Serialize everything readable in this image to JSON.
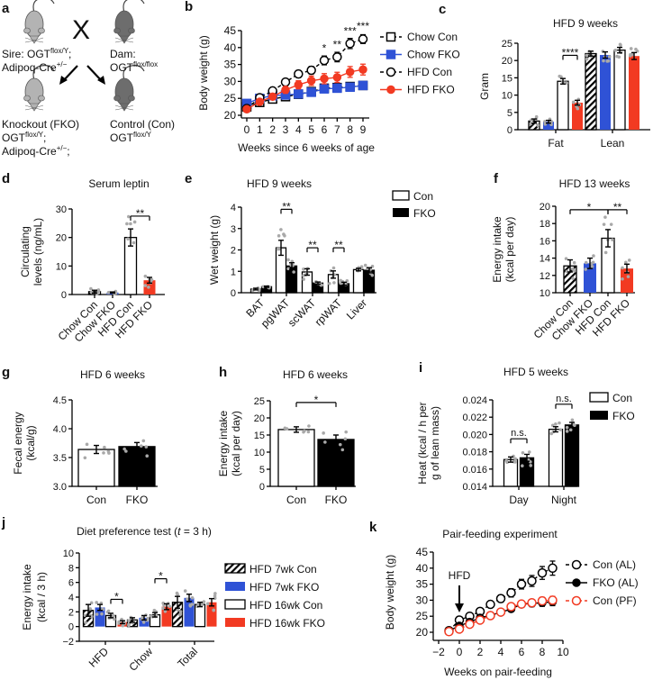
{
  "colors": {
    "black": "#000000",
    "blue": "#2f52d6",
    "red": "#f23a22",
    "white": "#ffffff",
    "dot": "#a9a9a9",
    "mouse_light": "#b3b3b3",
    "mouse_dark": "#6d6d6d"
  },
  "panel_a": {
    "label": "a",
    "cross_symbol": "X",
    "sire": [
      [
        {
          "t": "Sire: OGT"
        },
        {
          "sup": "flox/Y"
        },
        {
          "t": ";"
        }
      ],
      [
        {
          "t": "Adipoq-Cre"
        },
        {
          "sup": "+/−"
        }
      ]
    ],
    "dam": [
      [
        {
          "t": "Dam:"
        }
      ],
      [
        {
          "t": "OGT"
        },
        {
          "sup": "flox/flox"
        }
      ]
    ],
    "knockout": [
      [
        {
          "t": "Knockout (FKO)"
        }
      ],
      [
        {
          "t": "OGT"
        },
        {
          "sup": "flox/Y"
        },
        {
          "t": ";"
        }
      ],
      [
        {
          "t": "Adipoq-Cre"
        },
        {
          "sup": "+/−"
        },
        {
          "t": ";"
        }
      ]
    ],
    "control": [
      [
        {
          "t": "Control (Con)"
        }
      ],
      [
        {
          "t": "OGT"
        },
        {
          "sup": "flox/Y"
        }
      ]
    ]
  },
  "chart_data": [
    {
      "id": "b",
      "panel_label": "b",
      "type": "line",
      "title": "",
      "xlabel": "Weeks since 6 weeks of age",
      "ylabel": [
        "Body weight (g)"
      ],
      "xlim": [
        0,
        9
      ],
      "ylim": [
        20,
        45
      ],
      "xticks": [
        0,
        1,
        2,
        3,
        4,
        5,
        6,
        7,
        8,
        9
      ],
      "yticks": [
        "20",
        "25",
        "30",
        "35",
        "40",
        "45"
      ],
      "series": [
        {
          "name": "Chow Con",
          "marker": "square",
          "fill": "open",
          "color": "black",
          "dashed": true,
          "x": [
            0,
            1,
            2,
            3,
            4,
            5,
            6,
            7,
            8,
            9
          ],
          "y": [
            22.5,
            23.8,
            24.8,
            25.5,
            26.2,
            27,
            28,
            28.2,
            28.5,
            28.8
          ],
          "err": [
            0.5,
            0.5,
            0.5,
            0.5,
            0.6,
            0.6,
            0.7,
            0.7,
            0.8,
            0.8
          ]
        },
        {
          "name": "Chow FKO",
          "marker": "square",
          "fill": "filled",
          "color": "blue",
          "dashed": false,
          "x": [
            0,
            1,
            2,
            3,
            4,
            5,
            6,
            7,
            8,
            9
          ],
          "y": [
            23.5,
            25,
            25.8,
            26,
            26.3,
            26.8,
            27.8,
            28,
            28.3,
            28.8
          ],
          "err": [
            0.5,
            0.5,
            0.5,
            0.5,
            0.5,
            0.6,
            0.6,
            0.6,
            0.7,
            0.7
          ]
        },
        {
          "name": "HFD Con",
          "marker": "circle",
          "fill": "open",
          "color": "black",
          "dashed": true,
          "x": [
            0,
            1,
            2,
            3,
            4,
            5,
            6,
            7,
            8,
            9
          ],
          "y": [
            22,
            25.2,
            27.2,
            29.8,
            32.2,
            33.3,
            36.2,
            37.2,
            41.2,
            42.5
          ],
          "err": [
            0.5,
            0.6,
            0.7,
            0.8,
            1.0,
            1.1,
            1.3,
            1.4,
            1.5,
            1.3
          ]
        },
        {
          "name": "HFD FKO",
          "marker": "circle",
          "fill": "filled",
          "color": "red",
          "dashed": false,
          "x": [
            0,
            1,
            2,
            3,
            4,
            5,
            6,
            7,
            8,
            9
          ],
          "y": [
            21.8,
            24,
            25.5,
            27.5,
            29,
            30.2,
            30.8,
            31.2,
            32.8,
            33.5
          ],
          "err": [
            0.5,
            0.6,
            0.8,
            1.0,
            1.2,
            1.4,
            1.5,
            1.5,
            1.6,
            1.6
          ]
        }
      ],
      "annotations": [
        {
          "x": 6,
          "y": 38.8,
          "text": "*"
        },
        {
          "x": 7,
          "y": 39.8,
          "text": "**"
        },
        {
          "x": 8,
          "y": 43.8,
          "text": "***"
        },
        {
          "x": 9,
          "y": 45.2,
          "text": "***"
        }
      ],
      "legend": "right"
    },
    {
      "id": "c",
      "panel_label": "c",
      "type": "bar",
      "title": "HFD 9 weeks",
      "ylabel": [
        "Gram"
      ],
      "ylim": [
        0,
        25
      ],
      "yticks": [
        "0",
        "5",
        "10",
        "15",
        "20",
        "25"
      ],
      "categories": [
        "Fat",
        "Lean"
      ],
      "series": [
        {
          "name": "Chow Con",
          "style": "hatch",
          "values": [
            2.5,
            22
          ],
          "errors": [
            0.6,
            0.7
          ]
        },
        {
          "name": "Chow FKO",
          "style": "blue",
          "values": [
            2.3,
            21.6
          ],
          "errors": [
            0.4,
            0.9
          ]
        },
        {
          "name": "HFD Con",
          "style": "white",
          "values": [
            14,
            23
          ],
          "errors": [
            0.8,
            0.8
          ]
        },
        {
          "name": "HFD FKO",
          "style": "red",
          "values": [
            7.8,
            21.3
          ],
          "errors": [
            0.7,
            1.0
          ]
        }
      ],
      "brackets": [
        {
          "a": 2,
          "b": 3,
          "y": 21.5,
          "text": "****"
        }
      ]
    },
    {
      "id": "d",
      "panel_label": "d",
      "type": "bar",
      "title": "Serum leptin",
      "ylabel": [
        "Circulating",
        "levels (ng/mL)"
      ],
      "ylim": [
        0,
        30
      ],
      "yticks": [
        "0",
        "10",
        "20",
        "30"
      ],
      "categories": [
        "Chow Con",
        "Chow FKO",
        "HFD Con",
        "HFD FKO"
      ],
      "values": [
        1,
        0.7,
        20,
        5
      ],
      "errors": [
        0.5,
        0.2,
        3,
        1
      ],
      "styles": [
        "hatch",
        "blue",
        "white",
        "red"
      ],
      "brackets": [
        {
          "a": 2,
          "b": 3,
          "y": 27.5,
          "text": "**"
        }
      ]
    },
    {
      "id": "e",
      "panel_label": "e",
      "type": "bar",
      "title": "HFD 9 weeks",
      "ylabel": [
        "Wet weight (g)"
      ],
      "ylim": [
        0,
        4
      ],
      "yticks": [
        "0",
        "1",
        "2",
        "3",
        "4"
      ],
      "categories": [
        "BAT",
        "pgWAT",
        "scWAT",
        "rpWAT",
        "Liver"
      ],
      "series": [
        {
          "name": "Con",
          "style": "white",
          "values": [
            0.17,
            2.1,
            0.97,
            0.85,
            1.08
          ],
          "errors": [
            0.04,
            0.35,
            0.15,
            0.17,
            0.06
          ]
        },
        {
          "name": "FKO",
          "style": "black",
          "values": [
            0.28,
            1.25,
            0.45,
            0.42,
            1.05
          ],
          "errors": [
            0.03,
            0.15,
            0.05,
            0.07,
            0.12
          ]
        }
      ],
      "brackets": [
        {
          "a": 2,
          "b": 3,
          "y": 3.9,
          "text": "**"
        },
        {
          "a": 4,
          "b": 5,
          "y": 2.1,
          "text": "**"
        },
        {
          "a": 6,
          "b": 7,
          "y": 2.1,
          "text": "**"
        }
      ],
      "legend": "right"
    },
    {
      "id": "f",
      "panel_label": "f",
      "type": "bar",
      "title": "HFD 13 weeks",
      "ylabel": [
        "Energy intake",
        "(kcal per day)"
      ],
      "ylim": [
        10,
        20
      ],
      "yticks": [
        "10",
        "12",
        "14",
        "16",
        "18",
        "20"
      ],
      "categories": [
        "Chow Con",
        "Chow FKO",
        "HFD Con",
        "HFD FKO"
      ],
      "values": [
        13.1,
        13.4,
        16.3,
        12.8
      ],
      "errors": [
        0.7,
        0.6,
        1.0,
        0.5
      ],
      "styles": [
        "hatch",
        "blue",
        "white",
        "red"
      ],
      "brackets": [
        {
          "a": 0,
          "b": 2,
          "y": 19.6,
          "text": "*"
        },
        {
          "a": 2,
          "b": 3,
          "y": 19.6,
          "text": "**"
        }
      ]
    },
    {
      "id": "g",
      "panel_label": "g",
      "type": "bar",
      "title": "HFD 6 weeks",
      "ylabel": [
        "Fecal energy",
        "(kcal/g)"
      ],
      "ylim": [
        3.0,
        4.5
      ],
      "yticks": [
        "3.0",
        "3.5",
        "4.0",
        "4.5"
      ],
      "categories": [
        "Con",
        "FKO"
      ],
      "values": [
        3.64,
        3.69
      ],
      "errors": [
        0.07,
        0.07
      ],
      "styles": [
        "white",
        "black"
      ],
      "brackets": []
    },
    {
      "id": "h",
      "panel_label": "h",
      "type": "bar",
      "title": "HFD 6 weeks",
      "ylabel": [
        "Energy intake",
        "(kcal per day)"
      ],
      "ylim": [
        0,
        25
      ],
      "yticks": [
        "0",
        "5",
        "10",
        "15",
        "20",
        "25"
      ],
      "categories": [
        "Con",
        "FKO"
      ],
      "values": [
        16.6,
        13.7
      ],
      "errors": [
        0.8,
        1.3
      ],
      "styles": [
        "white",
        "black"
      ],
      "brackets": [
        {
          "a": 0,
          "b": 1,
          "y": 24.5,
          "text": "*"
        }
      ]
    },
    {
      "id": "i",
      "panel_label": "i",
      "type": "bar",
      "title": "HFD 5 weeks",
      "ylabel": [
        "Heat (kcal / h per",
        "g of lean mass)"
      ],
      "ylim": [
        0.014,
        0.024
      ],
      "yticks": [
        "0.014",
        "0.016",
        "0.018",
        "0.020",
        "0.022",
        "0.024"
      ],
      "categories": [
        "Day",
        "Night"
      ],
      "series": [
        {
          "name": "Con",
          "style": "white",
          "values": [
            0.0171,
            0.0206
          ],
          "errors": [
            0.0003,
            0.0003
          ]
        },
        {
          "name": "FKO",
          "style": "black",
          "values": [
            0.0173,
            0.0211
          ],
          "errors": [
            0.0004,
            0.0003
          ]
        }
      ],
      "brackets": [
        {
          "a": 0,
          "b": 1,
          "y": 0.0195,
          "text": "n.s."
        },
        {
          "a": 2,
          "b": 3,
          "y": 0.0235,
          "text": "n.s."
        }
      ],
      "legend": "right"
    },
    {
      "id": "j",
      "panel_label": "j",
      "type": "bar",
      "title_parts": [
        "Diet preference test (",
        "t",
        " = 3 h)"
      ],
      "ylabel": [
        "Energy intake",
        "(kcal / 3 h)"
      ],
      "ylim": [
        -2,
        10
      ],
      "yticks": [
        "−2",
        "0",
        "2",
        "4",
        "6",
        "8",
        "10"
      ],
      "categories": [
        "HFD",
        "Chow",
        "Total"
      ],
      "series": [
        {
          "name": "HFD 7wk Con",
          "style": "hatch",
          "values": [
            2.2,
            0.9,
            3.3
          ],
          "errors": [
            0.8,
            0.3,
            0.8
          ]
        },
        {
          "name": "HFD 7wk FKO",
          "style": "blue",
          "values": [
            2.6,
            1.2,
            3.9
          ],
          "errors": [
            0.4,
            0.3,
            0.5
          ]
        },
        {
          "name": "HFD 16wk Con",
          "style": "white",
          "values": [
            1.5,
            1.6,
            3.0
          ],
          "errors": [
            0.3,
            0.3,
            0.3
          ]
        },
        {
          "name": "HFD 16wk FKO",
          "style": "red",
          "values": [
            0.6,
            2.7,
            3.3
          ],
          "errors": [
            0.2,
            0.4,
            0.5
          ]
        }
      ],
      "brackets": [
        {
          "a": 2,
          "b": 3,
          "y": 3.7,
          "text": "*"
        },
        {
          "a": 6,
          "b": 7,
          "y": 6.5,
          "text": "*"
        }
      ],
      "legend": "right"
    },
    {
      "id": "k",
      "panel_label": "k",
      "type": "line",
      "title": "Pair-feeding experiment",
      "xlabel": "Weeks on pair-feeding",
      "ylabel": [
        "Body weight (g)"
      ],
      "xlim": [
        -2,
        10
      ],
      "ylim": [
        20,
        45
      ],
      "xticks": [
        "−2",
        "0",
        "2",
        "4",
        "6",
        "8",
        "10"
      ],
      "xtick_values": [
        -2,
        0,
        2,
        4,
        6,
        8,
        10
      ],
      "yticks": [
        "20",
        "25",
        "30",
        "35",
        "40",
        "45"
      ],
      "series": [
        {
          "name": "Con (AL)",
          "marker": "circle",
          "fill": "open",
          "color": "black",
          "dashed": true,
          "x": [
            -1,
            0,
            1,
            2,
            3,
            4,
            5,
            6,
            7,
            8,
            9
          ],
          "y": [
            20.5,
            23.8,
            25,
            26.5,
            28.7,
            30.5,
            32.3,
            35,
            36,
            38.5,
            40
          ],
          "err": [
            0.5,
            0.6,
            0.6,
            0.7,
            0.9,
            1.1,
            1.3,
            1.5,
            1.7,
            2.0,
            2.2
          ]
        },
        {
          "name": "FKO (AL)",
          "marker": "circle",
          "fill": "filled",
          "color": "black",
          "dashed": false,
          "x": [
            -1,
            0,
            1,
            2,
            3,
            4,
            5,
            6,
            7,
            8,
            9
          ],
          "y": [
            20.5,
            22,
            23.2,
            24.5,
            25.3,
            26.2,
            27.3,
            28.7,
            29,
            29.2,
            29.5
          ],
          "err": [
            0.5,
            0.5,
            0.5,
            0.6,
            0.6,
            0.7,
            0.8,
            0.9,
            1.0,
            1.1,
            1.2
          ]
        },
        {
          "name": "Con (PF)",
          "marker": "circle",
          "fill": "open",
          "color": "red",
          "dashed": true,
          "x": [
            -1,
            0,
            1,
            2,
            3,
            4,
            5,
            6,
            7,
            8,
            9
          ],
          "y": [
            20.2,
            21,
            22.5,
            23.8,
            25.2,
            26.3,
            28,
            28.8,
            29.2,
            29.8,
            30
          ],
          "err": [
            0.5,
            0.5,
            0.5,
            0.6,
            0.6,
            0.7,
            0.8,
            0.9,
            1.0,
            1.1,
            1.2
          ]
        }
      ],
      "annotations": [
        {
          "x": 0,
          "text": "HFD",
          "arrow": true
        }
      ],
      "legend": "right"
    }
  ]
}
